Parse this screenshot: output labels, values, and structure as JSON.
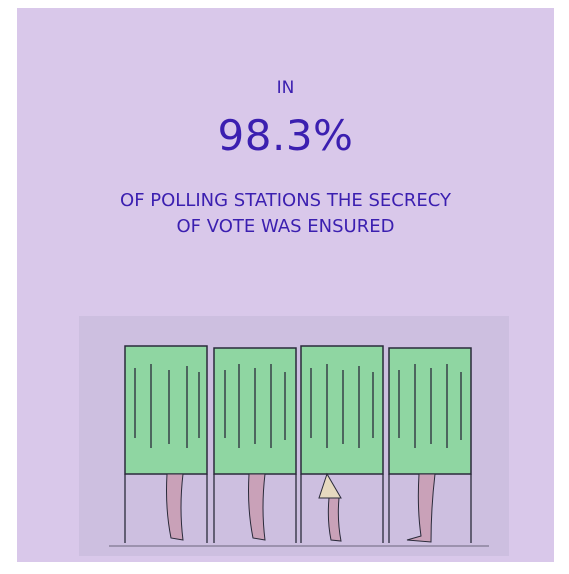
{
  "infographic": {
    "lead": "IN",
    "value": "98.3%",
    "caption_line1": "OF POLLING STATIONS THE SECRECY",
    "caption_line2": "OF VOTE WAS ENSURED"
  },
  "colors": {
    "background": "#d9c8ea",
    "text": "#3b1fb0",
    "curtain": "#8fd6a2",
    "line": "#2a2a3a"
  },
  "icons": {
    "illustration": "voting-booths-illustration"
  }
}
